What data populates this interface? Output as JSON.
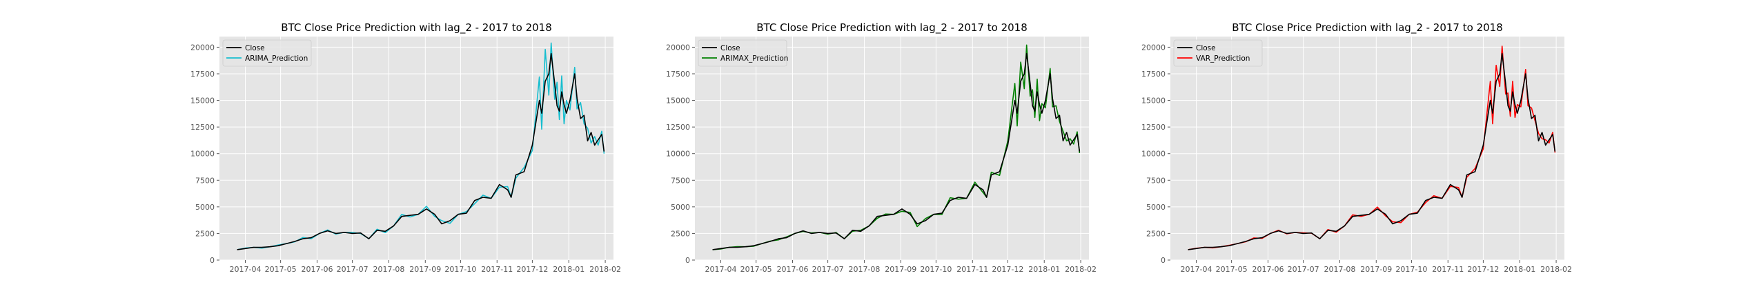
{
  "chart_data": [
    {
      "type": "line",
      "title": "BTC Close Price Prediction with lag_2 - 2017 to 2018",
      "xlabel": "",
      "ylabel": "",
      "ylim": [
        0,
        21000
      ],
      "xlim": [
        "2017-03-10",
        "2018-02-08"
      ],
      "yticks": [
        0,
        2500,
        5000,
        7500,
        10000,
        12500,
        15000,
        17500,
        20000
      ],
      "xticks": [
        "2017-04",
        "2017-05",
        "2017-06",
        "2017-07",
        "2017-08",
        "2017-09",
        "2017-10",
        "2017-11",
        "2017-12",
        "2018-01",
        "2018-02"
      ],
      "grid": true,
      "legend": "top-left",
      "series": [
        {
          "name": "Close",
          "color": "#000000"
        },
        {
          "name": "ARIMA_Prediction",
          "color": "#17becf"
        }
      ]
    },
    {
      "type": "line",
      "title": "BTC Close Price Prediction with lag_2 - 2017 to 2018",
      "xlabel": "",
      "ylabel": "",
      "ylim": [
        0,
        21000
      ],
      "xlim": [
        "2017-03-10",
        "2018-02-08"
      ],
      "yticks": [
        0,
        2500,
        5000,
        7500,
        10000,
        12500,
        15000,
        17500,
        20000
      ],
      "xticks": [
        "2017-04",
        "2017-05",
        "2017-06",
        "2017-07",
        "2017-08",
        "2017-09",
        "2017-10",
        "2017-11",
        "2017-12",
        "2018-01",
        "2018-02"
      ],
      "grid": true,
      "legend": "top-left",
      "series": [
        {
          "name": "Close",
          "color": "#000000"
        },
        {
          "name": "ARIMAX_Prediction",
          "color": "#008000"
        }
      ]
    },
    {
      "type": "line",
      "title": "BTC Close Price Prediction with lag_2 - 2017 to 2018",
      "xlabel": "",
      "ylabel": "",
      "ylim": [
        0,
        21000
      ],
      "xlim": [
        "2017-03-10",
        "2018-02-08"
      ],
      "yticks": [
        0,
        2500,
        5000,
        7500,
        10000,
        12500,
        15000,
        17500,
        20000
      ],
      "xticks": [
        "2017-04",
        "2017-05",
        "2017-06",
        "2017-07",
        "2017-08",
        "2017-09",
        "2017-10",
        "2017-11",
        "2017-12",
        "2018-01",
        "2018-02"
      ],
      "grid": true,
      "legend": "top-left",
      "series": [
        {
          "name": "Close",
          "color": "#000000"
        },
        {
          "name": "VAR_Prediction",
          "color": "#ff0000"
        }
      ]
    }
  ],
  "close_series": {
    "dates": [
      "2017-03-25",
      "2017-04-01",
      "2017-04-08",
      "2017-04-15",
      "2017-04-22",
      "2017-04-29",
      "2017-05-06",
      "2017-05-13",
      "2017-05-20",
      "2017-05-27",
      "2017-06-03",
      "2017-06-10",
      "2017-06-17",
      "2017-06-24",
      "2017-07-01",
      "2017-07-08",
      "2017-07-15",
      "2017-07-22",
      "2017-07-29",
      "2017-08-05",
      "2017-08-12",
      "2017-08-19",
      "2017-08-26",
      "2017-09-02",
      "2017-09-09",
      "2017-09-15",
      "2017-09-22",
      "2017-09-29",
      "2017-10-06",
      "2017-10-13",
      "2017-10-20",
      "2017-10-27",
      "2017-11-03",
      "2017-11-10",
      "2017-11-13",
      "2017-11-17",
      "2017-11-24",
      "2017-12-01",
      "2017-12-07",
      "2017-12-09",
      "2017-12-12",
      "2017-12-15",
      "2017-12-17",
      "2017-12-20",
      "2017-12-22",
      "2017-12-24",
      "2017-12-26",
      "2017-12-28",
      "2017-12-30",
      "2018-01-02",
      "2018-01-06",
      "2018-01-08",
      "2018-01-11",
      "2018-01-14",
      "2018-01-17",
      "2018-01-20",
      "2018-01-23",
      "2018-01-26",
      "2018-01-29",
      "2018-01-31"
    ],
    "values": [
      980,
      1080,
      1190,
      1200,
      1250,
      1350,
      1550,
      1750,
      2000,
      2100,
      2500,
      2750,
      2500,
      2600,
      2500,
      2550,
      2000,
      2800,
      2700,
      3200,
      4100,
      4200,
      4300,
      4800,
      4300,
      3400,
      3700,
      4300,
      4400,
      5600,
      5900,
      5800,
      7100,
      6600,
      5900,
      8000,
      8300,
      10800,
      15000,
      13800,
      16800,
      17500,
      19400,
      16600,
      14500,
      14000,
      15800,
      14600,
      13800,
      15000,
      17500,
      15200,
      13300,
      13600,
      11200,
      12000,
      10800,
      11300,
      11800,
      10200
    ]
  },
  "predictions": [
    {
      "name": "ARIMA_Prediction",
      "offsets": [
        0,
        50,
        0,
        -80,
        0,
        60,
        0,
        -40,
        120,
        -100,
        0,
        80,
        -60,
        0,
        90,
        -50,
        0,
        100,
        -120,
        0,
        200,
        -150,
        0,
        250,
        -200,
        300,
        -250,
        0,
        150,
        -300,
        200,
        0,
        -250,
        300,
        0,
        -300,
        400,
        -500,
        2200,
        -1500,
        3000,
        -2000,
        1000,
        -1500,
        2200,
        -800,
        1500,
        -1800,
        1200,
        -900,
        600,
        -1000,
        1500,
        -800,
        1200,
        -1000,
        800,
        -500,
        300,
        -200
      ]
    },
    {
      "name": "ARIMAX_Prediction",
      "offsets": [
        0,
        -40,
        0,
        60,
        0,
        -50,
        0,
        30,
        -100,
        80,
        0,
        -60,
        50,
        0,
        -70,
        40,
        0,
        -90,
        100,
        0,
        -180,
        120,
        0,
        -220,
        180,
        -250,
        200,
        0,
        -120,
        250,
        -180,
        0,
        220,
        -260,
        0,
        250,
        -350,
        400,
        1600,
        -1200,
        1800,
        -1400,
        800,
        -1200,
        1500,
        -600,
        1200,
        -1500,
        900,
        -700,
        500,
        -800,
        1200,
        -600,
        900,
        -800,
        600,
        -400,
        250,
        -150
      ]
    },
    {
      "name": "VAR_Prediction",
      "offsets": [
        0,
        30,
        0,
        -50,
        0,
        40,
        0,
        -30,
        80,
        -60,
        0,
        50,
        -40,
        0,
        60,
        -30,
        0,
        70,
        -80,
        0,
        150,
        -100,
        0,
        180,
        -150,
        200,
        -180,
        0,
        100,
        -200,
        150,
        0,
        -180,
        220,
        0,
        -220,
        300,
        -350,
        1800,
        -1000,
        1500,
        -1200,
        700,
        -1000,
        1200,
        -500,
        1000,
        -1200,
        800,
        -600,
        400,
        -700,
        1000,
        -500,
        700,
        -600,
        500,
        -300,
        200,
        -100
      ]
    }
  ]
}
